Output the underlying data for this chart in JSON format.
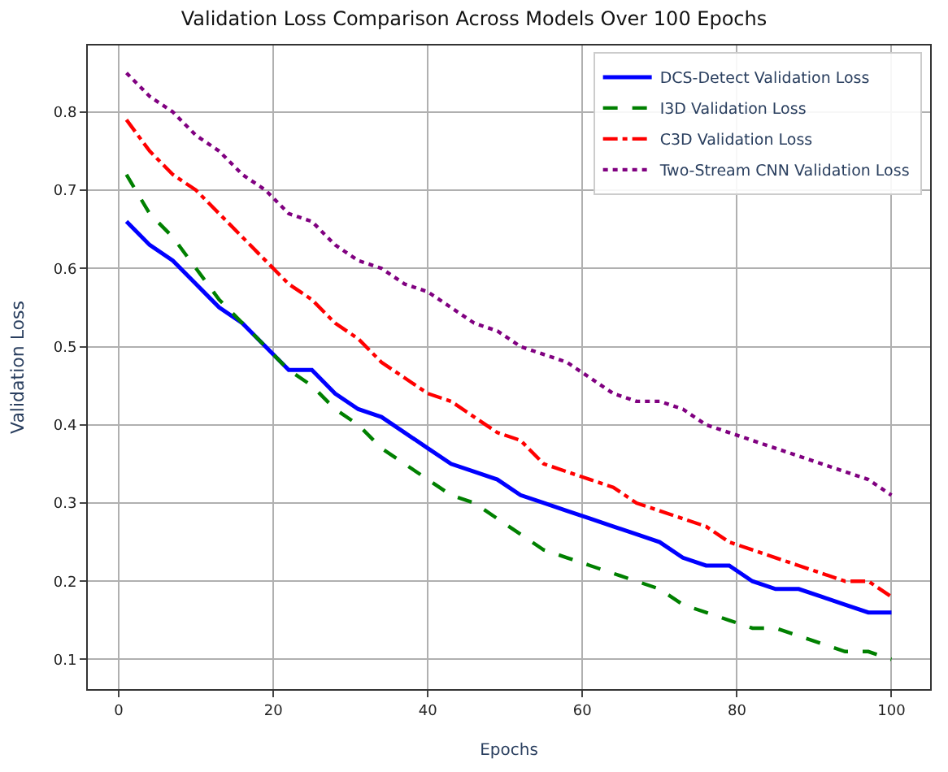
{
  "chart_data": {
    "type": "line",
    "title": "Validation Loss Comparison Across Models Over 100 Epochs",
    "xlabel": "Epochs",
    "ylabel": "Validation Loss",
    "x": [
      1,
      4,
      7,
      10,
      13,
      16,
      19,
      22,
      25,
      28,
      31,
      34,
      37,
      40,
      43,
      46,
      49,
      52,
      55,
      58,
      61,
      64,
      67,
      70,
      73,
      76,
      79,
      82,
      85,
      88,
      91,
      94,
      97,
      100
    ],
    "series": [
      {
        "name": "DCS-Detect Validation Loss",
        "color": "#0000ff",
        "line_style": "solid",
        "values": [
          0.66,
          0.63,
          0.61,
          0.58,
          0.55,
          0.53,
          0.5,
          0.47,
          0.47,
          0.44,
          0.42,
          0.41,
          0.39,
          0.37,
          0.35,
          0.34,
          0.33,
          0.31,
          0.3,
          0.29,
          0.28,
          0.27,
          0.26,
          0.25,
          0.23,
          0.22,
          0.22,
          0.2,
          0.19,
          0.19,
          0.18,
          0.17,
          0.16,
          0.16
        ]
      },
      {
        "name": "I3D Validation Loss",
        "color": "#008000",
        "line_style": "dashed",
        "values": [
          0.72,
          0.67,
          0.64,
          0.6,
          0.56,
          0.53,
          0.5,
          0.47,
          0.45,
          0.42,
          0.4,
          0.37,
          0.35,
          0.33,
          0.31,
          0.3,
          0.28,
          0.26,
          0.24,
          0.23,
          0.22,
          0.21,
          0.2,
          0.19,
          0.17,
          0.16,
          0.15,
          0.14,
          0.14,
          0.13,
          0.12,
          0.11,
          0.11,
          0.1
        ]
      },
      {
        "name": "C3D Validation Loss",
        "color": "#ff0000",
        "line_style": "dashdot",
        "values": [
          0.79,
          0.75,
          0.72,
          0.7,
          0.67,
          0.64,
          0.61,
          0.58,
          0.56,
          0.53,
          0.51,
          0.48,
          0.46,
          0.44,
          0.43,
          0.41,
          0.39,
          0.38,
          0.35,
          0.34,
          0.33,
          0.32,
          0.3,
          0.29,
          0.28,
          0.27,
          0.25,
          0.24,
          0.23,
          0.22,
          0.21,
          0.2,
          0.2,
          0.18
        ]
      },
      {
        "name": "Two-Stream CNN Validation Loss",
        "color": "#800080",
        "line_style": "dotted",
        "values": [
          0.85,
          0.82,
          0.8,
          0.77,
          0.75,
          0.72,
          0.7,
          0.67,
          0.66,
          0.63,
          0.61,
          0.6,
          0.58,
          0.57,
          0.55,
          0.53,
          0.52,
          0.5,
          0.49,
          0.48,
          0.46,
          0.44,
          0.43,
          0.43,
          0.42,
          0.4,
          0.39,
          0.38,
          0.37,
          0.36,
          0.35,
          0.34,
          0.33,
          0.31
        ]
      }
    ],
    "xlim": [
      -4,
      105
    ],
    "ylim": [
      0.062,
      0.885
    ],
    "xticks": [
      0,
      20,
      40,
      60,
      80,
      100
    ],
    "yticks": [
      0.1,
      0.2,
      0.3,
      0.4,
      0.5,
      0.6,
      0.7,
      0.8
    ],
    "grid": true,
    "legend": "top right",
    "marker": "none"
  }
}
